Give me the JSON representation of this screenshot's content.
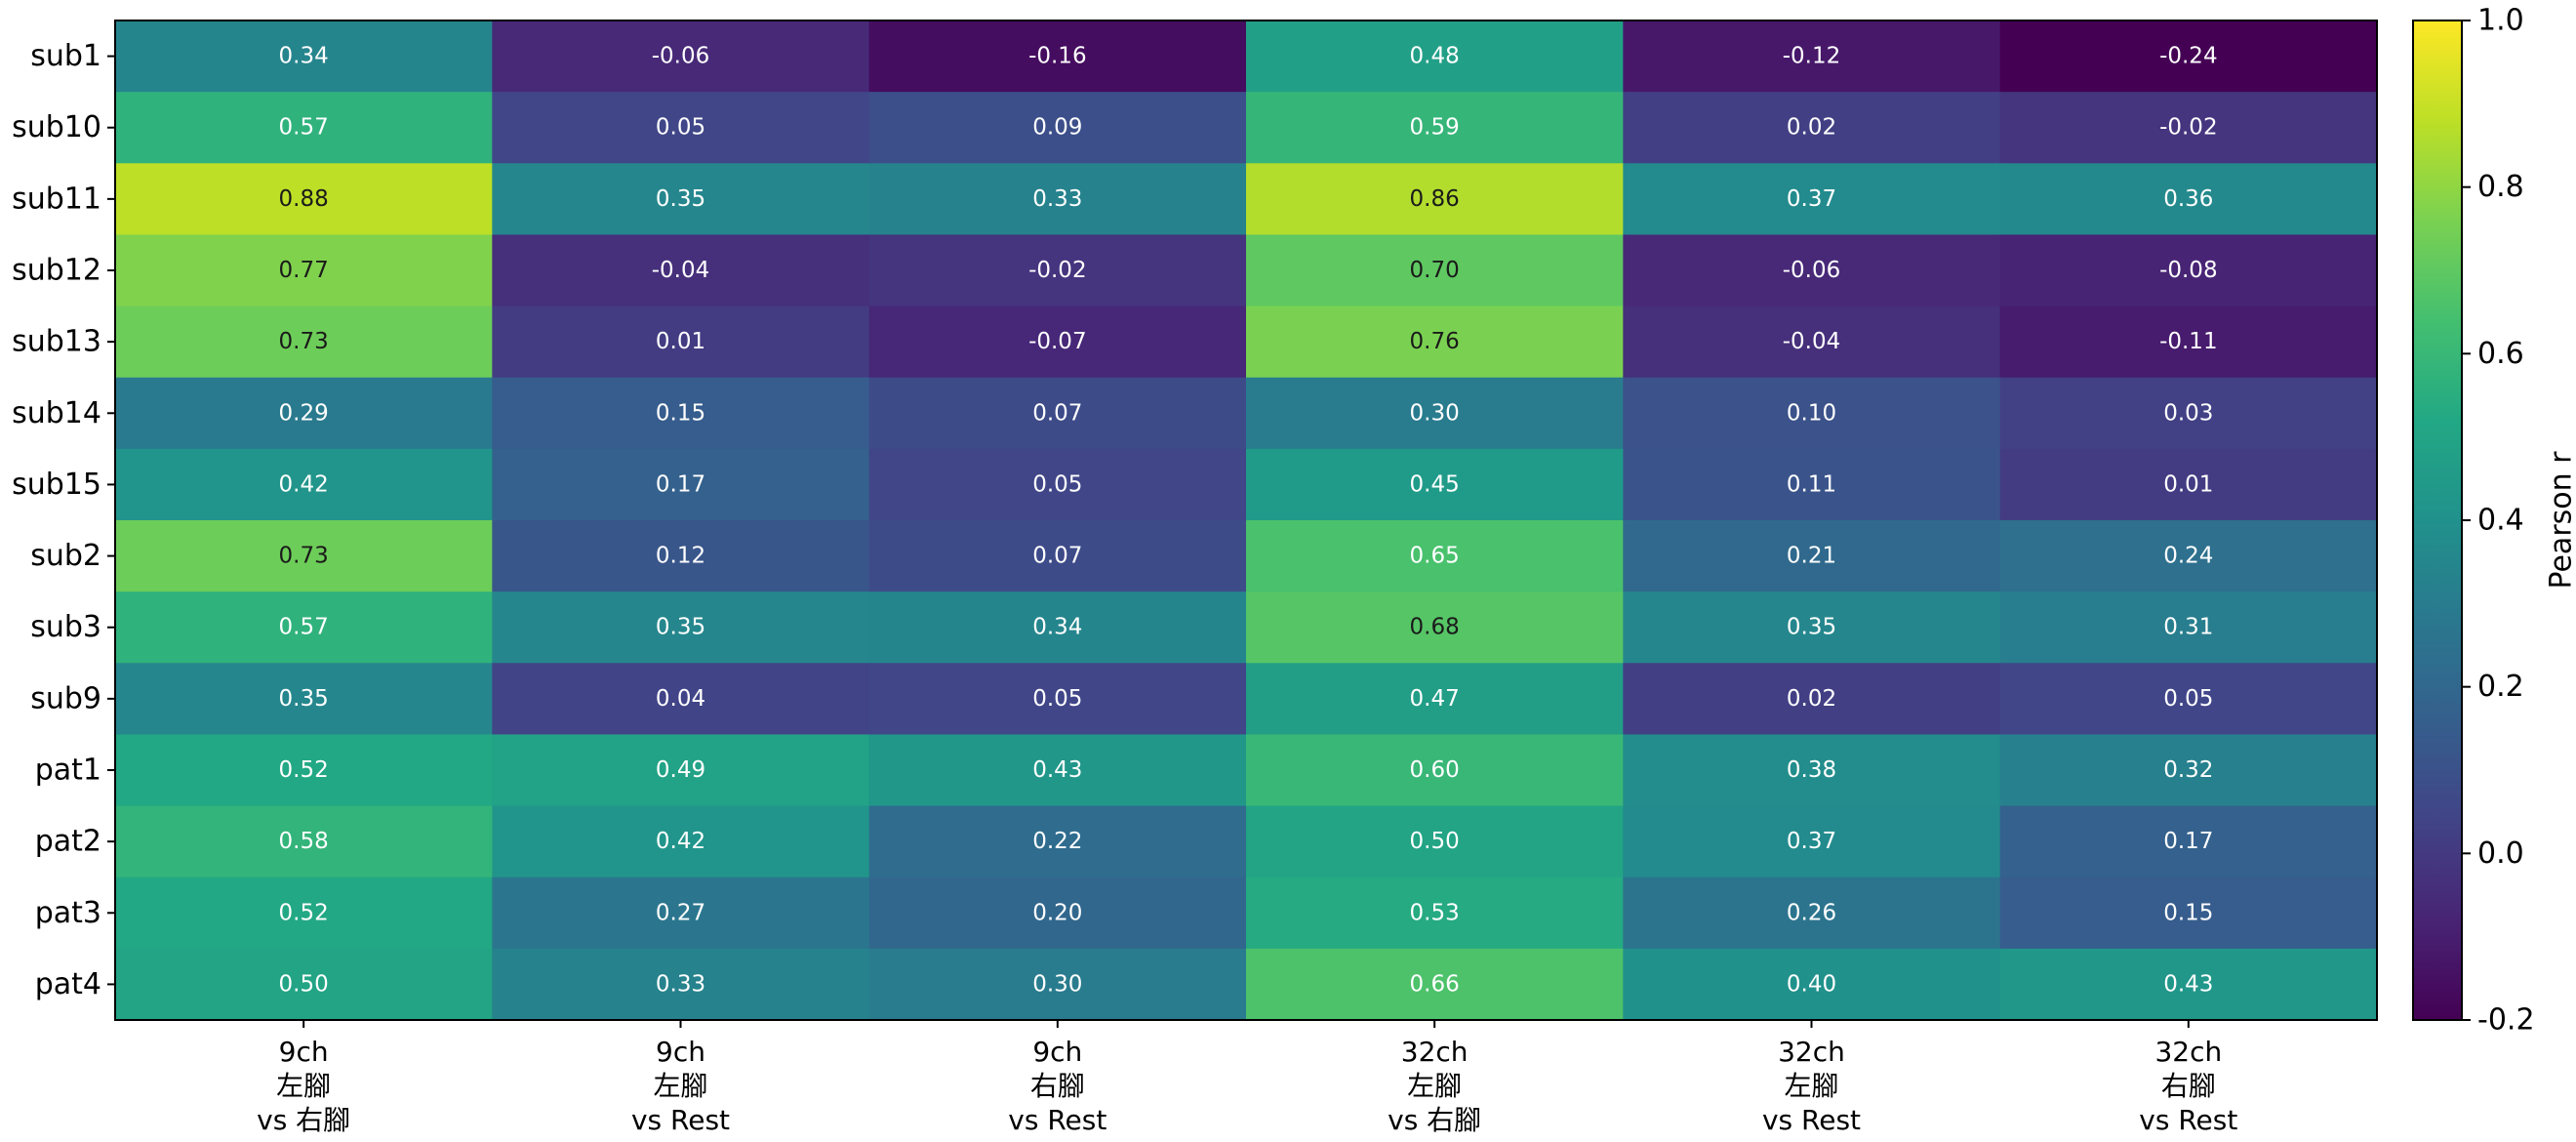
{
  "chart_data": {
    "type": "heatmap",
    "title": "",
    "xlabel": "",
    "ylabel": "",
    "rows": [
      "sub1",
      "sub10",
      "sub11",
      "sub12",
      "sub13",
      "sub14",
      "sub15",
      "sub2",
      "sub3",
      "sub9",
      "pat1",
      "pat2",
      "pat3",
      "pat4"
    ],
    "columns": [
      [
        "9ch",
        "左腳",
        "vs 右腳"
      ],
      [
        "9ch",
        "左腳",
        "vs Rest"
      ],
      [
        "9ch",
        "右腳",
        "vs Rest"
      ],
      [
        "32ch",
        "左腳",
        "vs 右腳"
      ],
      [
        "32ch",
        "左腳",
        "vs Rest"
      ],
      [
        "32ch",
        "右腳",
        "vs Rest"
      ]
    ],
    "values": [
      [
        0.34,
        -0.06,
        -0.16,
        0.48,
        -0.12,
        -0.24
      ],
      [
        0.57,
        0.05,
        0.09,
        0.59,
        0.02,
        -0.02
      ],
      [
        0.88,
        0.35,
        0.33,
        0.86,
        0.37,
        0.36
      ],
      [
        0.77,
        -0.04,
        -0.02,
        0.7,
        -0.06,
        -0.08
      ],
      [
        0.73,
        0.01,
        -0.07,
        0.76,
        -0.04,
        -0.11
      ],
      [
        0.29,
        0.15,
        0.07,
        0.3,
        0.1,
        0.03
      ],
      [
        0.42,
        0.17,
        0.05,
        0.45,
        0.11,
        0.01
      ],
      [
        0.73,
        0.12,
        0.07,
        0.65,
        0.21,
        0.24
      ],
      [
        0.57,
        0.35,
        0.34,
        0.68,
        0.35,
        0.31
      ],
      [
        0.35,
        0.04,
        0.05,
        0.47,
        0.02,
        0.05
      ],
      [
        0.52,
        0.49,
        0.43,
        0.6,
        0.38,
        0.32
      ],
      [
        0.58,
        0.42,
        0.22,
        0.5,
        0.37,
        0.17
      ],
      [
        0.52,
        0.27,
        0.2,
        0.53,
        0.26,
        0.15
      ],
      [
        0.5,
        0.33,
        0.3,
        0.66,
        0.4,
        0.43
      ]
    ],
    "colormap": "viridis",
    "vmin": -0.2,
    "vmax": 1.0,
    "annotations": "values shown in each cell, two decimals",
    "colorbar": {
      "label": "Pearson r",
      "ticks": [
        -0.2,
        0.0,
        0.2,
        0.4,
        0.6,
        0.8,
        1.0
      ],
      "tick_labels": [
        "-0.2",
        "0.0",
        "0.2",
        "0.4",
        "0.6",
        "0.8",
        "1.0"
      ]
    },
    "grid": false
  }
}
